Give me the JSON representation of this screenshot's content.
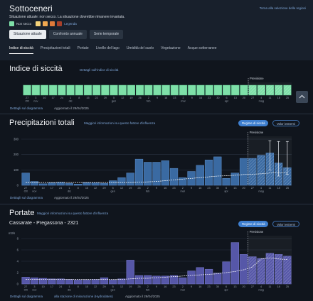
{
  "header": {
    "title": "Sottoceneri",
    "back_link": "Torna alla selezione delle regioni",
    "situation": "Situazione attuale: non secco. La situazione dovrebbe rimanere invariata.",
    "legend_label": "Non secco",
    "legend_link": "Legenda",
    "buttons": [
      "Situazione attuale",
      "Confronto annuale",
      "Serie temporale"
    ],
    "tabs": [
      "Indice di siccità",
      "Precipitazioni totali",
      "Portate",
      "Livello del lago",
      "Umidità del suolo",
      "Vegetazione",
      "Acque sotterranee"
    ],
    "colors": {
      "non_secco": "#7ee0a8",
      "l2": "#f4d27a",
      "l3": "#f0a850",
      "l4": "#e07a3a",
      "l5": "#a8402a"
    }
  },
  "indice": {
    "title": "Indice di siccità",
    "details_link": "Dettagli sull'indice di siccità",
    "forecast_label": "Previsione",
    "diagram_link": "Dettagli sul diagramma",
    "updated": "Aggiornato il 29/04/2025"
  },
  "precip": {
    "title": "Precipitazioni totali",
    "info_link": "Maggiori informazioni su questo fattore d'influenza",
    "pill_active": "Regime di siccità",
    "pill_other": "Valori estremi",
    "forecast_label": "Previsione",
    "diagram_link": "Dettagli sul diagramma",
    "updated": "Aggiornato il 29/04/2025"
  },
  "portate": {
    "title": "Portate",
    "info_link": "Maggiori informazioni su questo fattore d'influenza",
    "station": "Cassarate - Pregassona - 2321",
    "pill_active": "Regime di siccità",
    "pill_other": "Valori estremi",
    "forecast_label": "Previsione",
    "diagram_link": "Dettagli sul diagramma",
    "influence_link": "alla stazione di misurazione (Hydrodaten)",
    "updated": "Aggiornato il 29/04/2025"
  },
  "chart_data": [
    {
      "type": "bar",
      "title": "Indice di siccità",
      "categories": [
        "Ott 27",
        "nov 3",
        "10",
        "17",
        "24",
        "dic 1",
        "8",
        "15",
        "22",
        "29",
        "gen 5",
        "12",
        "19",
        "26",
        "feb 2",
        "9",
        "16",
        "23",
        "mar 2",
        "9",
        "16",
        "23",
        "30",
        "apr 6",
        "13",
        "20",
        "27",
        "mag 4",
        "11",
        "18",
        "25"
      ],
      "values": [
        1,
        1,
        1,
        1,
        1,
        1,
        1,
        1,
        1,
        1,
        1,
        1,
        1,
        1,
        1,
        1,
        1,
        1,
        1,
        1,
        1,
        1,
        1,
        1,
        1,
        1,
        1,
        1,
        1,
        1,
        1
      ],
      "forecast_from_index": 26,
      "xlabel": "",
      "ylabel": ""
    },
    {
      "type": "bar",
      "title": "Precipitazioni totali",
      "categories": [
        "Ott 27",
        "nov 3",
        "10",
        "17",
        "24",
        "dic 1",
        "8",
        "15",
        "22",
        "29",
        "gen 5",
        "12",
        "19",
        "26",
        "feb 2",
        "9",
        "16",
        "23",
        "mar 2",
        "9",
        "16",
        "23",
        "30",
        "apr 6",
        "13",
        "20",
        "27",
        "mag 4",
        "11",
        "18",
        "25"
      ],
      "values": [
        80,
        25,
        10,
        15,
        20,
        12,
        8,
        18,
        15,
        12,
        30,
        50,
        80,
        170,
        150,
        150,
        160,
        110,
        50,
        90,
        130,
        165,
        185,
        45,
        80,
        175,
        175,
        195,
        210,
        145,
        115
      ],
      "median": [
        18,
        18,
        18,
        18,
        18,
        18,
        18,
        18,
        18,
        18,
        18,
        18,
        18,
        20,
        22,
        25,
        30,
        35,
        40,
        45,
        50,
        55,
        60,
        62,
        65,
        70,
        72,
        75,
        80,
        80,
        80
      ],
      "error_bars": {
        "28": [
          100,
          290
        ],
        "29": [
          60,
          285
        ],
        "30": [
          70,
          285
        ]
      },
      "forecast_from_index": 26,
      "ylim": [
        0,
        300
      ],
      "yticks": [
        0,
        100,
        200,
        300
      ]
    },
    {
      "type": "bar",
      "title": "Portate",
      "ylabel": "m3/s",
      "categories": [
        "Ott 27",
        "nov 3",
        "10",
        "17",
        "24",
        "dic 1",
        "8",
        "15",
        "22",
        "29",
        "gen 5",
        "12",
        "19",
        "26",
        "feb 2",
        "9",
        "16",
        "23",
        "mar 2",
        "9",
        "16",
        "23",
        "30",
        "apr 6",
        "13",
        "20",
        "27",
        "mag 4",
        "11",
        "18",
        "25"
      ],
      "values": [
        1.2,
        1.1,
        1.0,
        0.9,
        0.9,
        0.8,
        0.7,
        0.7,
        0.8,
        1.1,
        0.7,
        0.9,
        4.2,
        1.5,
        1.5,
        1.4,
        1.4,
        1.5,
        1.1,
        2.3,
        2.9,
        2.6,
        1.9,
        3.9,
        7.3,
        5.2,
        4.8,
        4.5,
        5.4,
        5.2,
        4.9
      ],
      "median": [
        0.8,
        0.8,
        0.8,
        0.8,
        0.8,
        0.8,
        0.8,
        0.8,
        0.8,
        0.8,
        0.8,
        0.8,
        0.9,
        1.0,
        1.0,
        1.1,
        1.2,
        1.3,
        1.4,
        1.5,
        1.6,
        1.7,
        1.8,
        2.0,
        2.2,
        2.5,
        3.0,
        4.4,
        4.6,
        4.4,
        4.3
      ],
      "forecast_from_index": 26,
      "ylim": [
        0,
        8
      ],
      "yticks": [
        0,
        2,
        4,
        6,
        8
      ]
    }
  ]
}
